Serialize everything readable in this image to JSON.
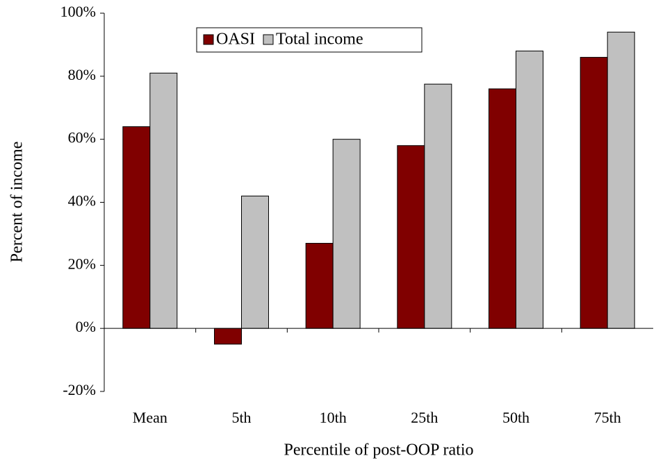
{
  "chart_data": {
    "type": "bar",
    "x_label": "Percentile of post-OOP ratio",
    "y_label": "Percent of income",
    "categories": [
      "Mean",
      "5th",
      "10th",
      "25th",
      "50th",
      "75th"
    ],
    "series": [
      {
        "name": "OASI",
        "color": "#800000",
        "values": [
          64,
          -5,
          27,
          58,
          76,
          86
        ]
      },
      {
        "name": "Total income",
        "color": "#c0c0c0",
        "values": [
          81,
          42,
          60,
          77.5,
          88,
          94
        ]
      }
    ],
    "ylim": [
      -20,
      100
    ],
    "yticks": [
      {
        "value": -20,
        "label": "-20%"
      },
      {
        "value": 0,
        "label": "0%"
      },
      {
        "value": 20,
        "label": "20%"
      },
      {
        "value": 40,
        "label": "40%"
      },
      {
        "value": 60,
        "label": "60%"
      },
      {
        "value": 80,
        "label": "80%"
      },
      {
        "value": 100,
        "label": "100%"
      }
    ],
    "legend": "upper left"
  }
}
